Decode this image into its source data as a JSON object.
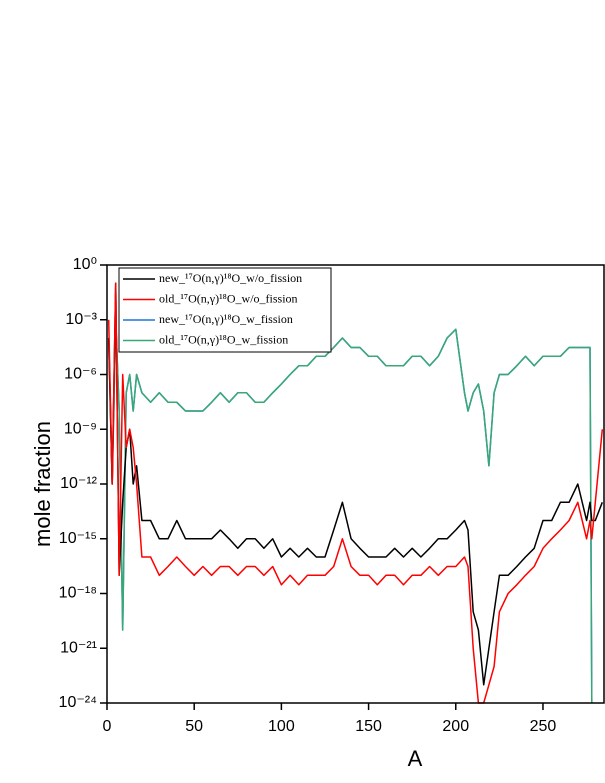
{
  "chart_data": {
    "type": "line",
    "xlabel": "A",
    "ylabel": "mole fraction",
    "log_y": true,
    "xlim": [
      0,
      285
    ],
    "xticks": [
      0,
      50,
      100,
      150,
      200,
      250
    ],
    "ylim": [
      1e-24,
      1
    ],
    "yticks": [
      {
        "value": 1,
        "label": "10⁰"
      },
      {
        "value": 0.001,
        "label": "10⁻³"
      },
      {
        "value": 1e-06,
        "label": "10⁻⁶"
      },
      {
        "value": 1e-09,
        "label": "10⁻⁹"
      },
      {
        "value": 1e-12,
        "label": "10⁻¹²"
      },
      {
        "value": 1e-15,
        "label": "10⁻¹⁵"
      },
      {
        "value": 1e-18,
        "label": "10⁻¹⁸"
      },
      {
        "value": 1e-21,
        "label": "10⁻²¹"
      },
      {
        "value": 1e-24,
        "label": "10⁻²⁴"
      }
    ],
    "legend": "upper left",
    "x": [
      1,
      3,
      5,
      7,
      9,
      11,
      13,
      15,
      17,
      20,
      25,
      30,
      35,
      40,
      45,
      50,
      55,
      60,
      65,
      70,
      75,
      80,
      85,
      90,
      95,
      100,
      105,
      110,
      115,
      120,
      125,
      130,
      135,
      140,
      145,
      150,
      155,
      160,
      165,
      170,
      175,
      180,
      185,
      190,
      195,
      200,
      205,
      207,
      210,
      213,
      216,
      219,
      222,
      225,
      230,
      235,
      240,
      245,
      250,
      255,
      260,
      265,
      270,
      275,
      277,
      278,
      280,
      284
    ],
    "series": [
      {
        "name": "new_¹⁷O(n,γ)¹⁸O_w/o_fission",
        "color": "#000000",
        "values": [
          0.0001,
          1e-12,
          0.1,
          1e-17,
          1e-13,
          1e-10,
          1e-09,
          1e-12,
          1e-11,
          1e-14,
          1e-14,
          1e-15,
          1e-15,
          1e-14,
          1e-15,
          1e-15,
          1e-15,
          1e-15,
          3e-15,
          1e-15,
          3e-16,
          1e-15,
          1e-15,
          3e-16,
          1e-15,
          1e-16,
          3e-16,
          1e-16,
          3e-16,
          1e-16,
          1e-16,
          3e-15,
          1e-13,
          1e-15,
          3e-16,
          1e-16,
          1e-16,
          1e-16,
          3e-16,
          1e-16,
          3e-16,
          1e-16,
          3e-16,
          1e-15,
          1e-15,
          3e-15,
          1e-14,
          3e-15,
          1e-19,
          1e-20,
          1e-23,
          1e-21,
          1e-19,
          1e-17,
          1e-17,
          3e-17,
          1e-16,
          3e-16,
          1e-14,
          1e-14,
          1e-13,
          1e-13,
          1e-12,
          1e-14,
          1e-13,
          1e-14,
          1e-14,
          1e-13
        ]
      },
      {
        "name": "old_¹⁷O(n,γ)¹⁸O_w/o_fission",
        "color": "#ff0000",
        "values": [
          0.001,
          1e-12,
          0.1,
          1e-17,
          1e-06,
          1e-10,
          1e-09,
          1e-10,
          1e-12,
          1e-16,
          1e-16,
          1e-17,
          3e-17,
          1e-16,
          3e-17,
          1e-17,
          3e-17,
          1e-17,
          3e-17,
          3e-17,
          1e-17,
          3e-17,
          3e-17,
          1e-17,
          3e-17,
          3e-18,
          1e-17,
          3e-18,
          1e-17,
          1e-17,
          1e-17,
          3e-17,
          1e-15,
          3e-17,
          1e-17,
          1e-17,
          3e-18,
          1e-17,
          1e-17,
          3e-18,
          1e-17,
          1e-17,
          3e-17,
          1e-17,
          3e-17,
          3e-17,
          1e-16,
          3e-17,
          1e-21,
          1e-24,
          1e-24,
          1e-23,
          1e-22,
          1e-19,
          1e-18,
          3e-18,
          1e-17,
          3e-17,
          3e-16,
          1e-15,
          3e-15,
          1e-14,
          1e-13,
          1e-15,
          1e-14,
          1e-15,
          1e-13,
          1e-09
        ]
      },
      {
        "name": "new_¹⁷O(n,γ)¹⁸O_w_fission",
        "color": "#1f77d4",
        "values": [
          0.0001,
          1e-12,
          0.001,
          1e-08,
          1e-20,
          1e-07,
          1e-06,
          1e-08,
          1e-06,
          1e-07,
          3e-08,
          1e-07,
          3e-08,
          3e-08,
          1e-08,
          1e-08,
          1e-08,
          3e-08,
          1e-07,
          3e-08,
          1e-07,
          1e-07,
          3e-08,
          3e-08,
          1e-07,
          3e-07,
          1e-06,
          3e-06,
          3e-06,
          1e-05,
          1e-05,
          3e-05,
          0.0001,
          3e-05,
          3e-05,
          1e-05,
          1e-05,
          3e-06,
          3e-06,
          3e-06,
          1e-05,
          1e-05,
          3e-06,
          1e-05,
          0.0001,
          0.0003,
          1e-07,
          1e-08,
          1e-07,
          3e-07,
          1e-08,
          1e-11,
          1e-07,
          1e-06,
          1e-06,
          3e-06,
          1e-05,
          3e-06,
          1e-05,
          1e-05,
          1e-05,
          3e-05,
          3e-05,
          3e-05,
          3e-05,
          1e-24,
          null,
          null
        ]
      },
      {
        "name": "old_¹⁷O(n,γ)¹⁸O_w_fission",
        "color": "#3aa776",
        "values": [
          0.0001,
          1e-12,
          0.001,
          1e-08,
          1e-20,
          1e-07,
          1e-06,
          1e-08,
          1e-06,
          1e-07,
          3e-08,
          1e-07,
          3e-08,
          3e-08,
          1e-08,
          1e-08,
          1e-08,
          3e-08,
          1e-07,
          3e-08,
          1e-07,
          1e-07,
          3e-08,
          3e-08,
          1e-07,
          3e-07,
          1e-06,
          3e-06,
          3e-06,
          1e-05,
          1e-05,
          3e-05,
          0.0001,
          3e-05,
          3e-05,
          1e-05,
          1e-05,
          3e-06,
          3e-06,
          3e-06,
          1e-05,
          1e-05,
          3e-06,
          1e-05,
          0.0001,
          0.0003,
          1e-07,
          1e-08,
          1e-07,
          3e-07,
          1e-08,
          1e-11,
          1e-07,
          1e-06,
          1e-06,
          3e-06,
          1e-05,
          3e-06,
          1e-05,
          1e-05,
          1e-05,
          3e-05,
          3e-05,
          3e-05,
          3e-05,
          1e-24,
          null,
          null
        ]
      }
    ]
  }
}
